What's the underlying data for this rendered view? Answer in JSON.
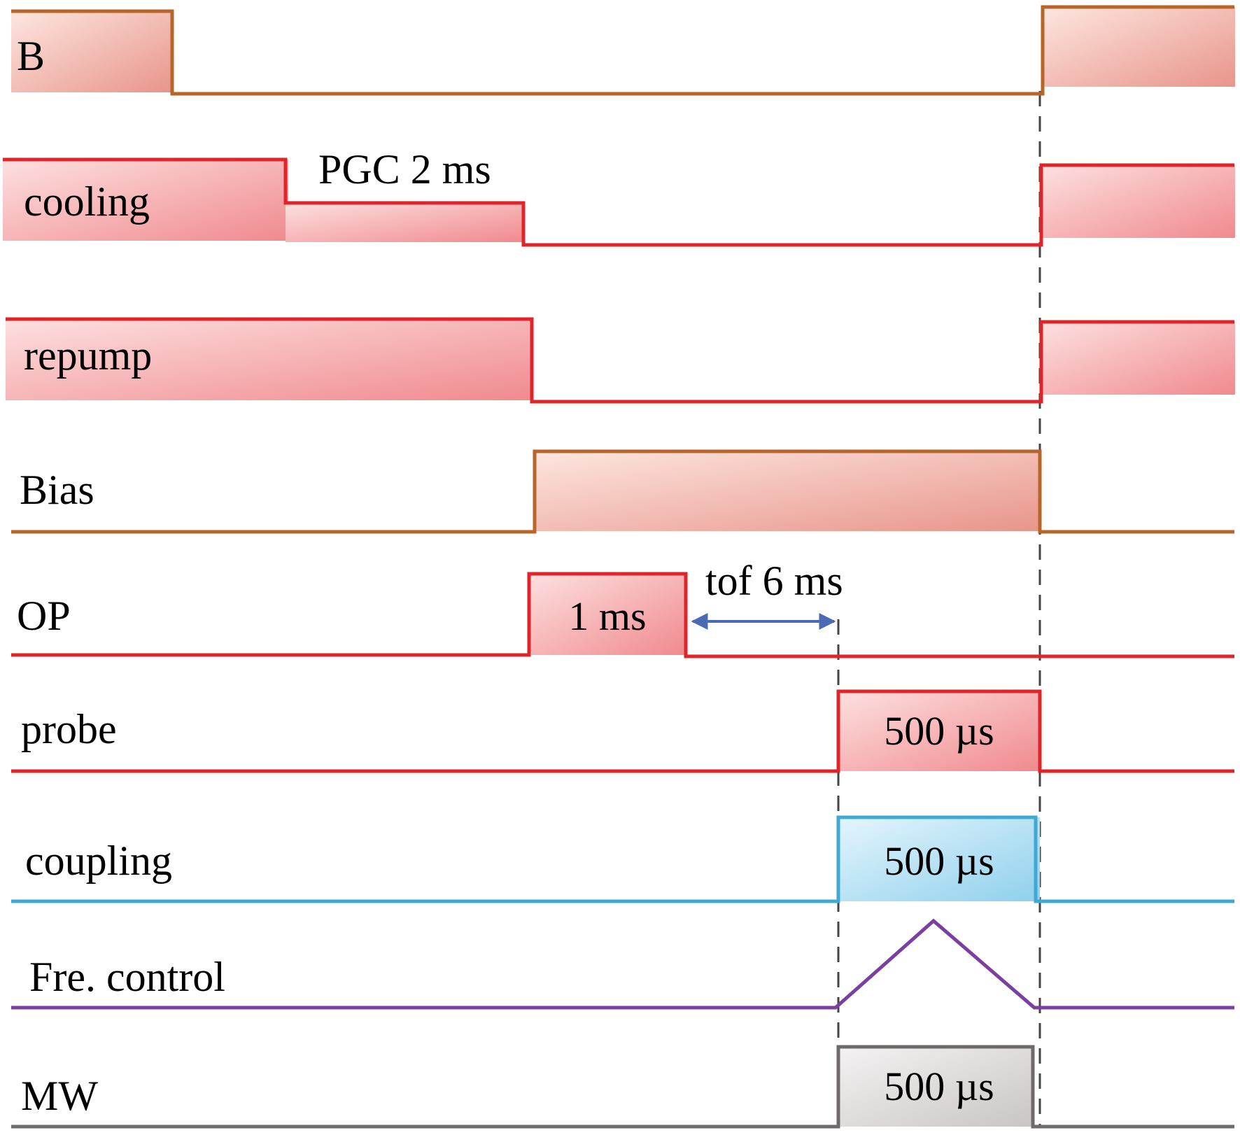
{
  "colors": {
    "orange_edge": "#b8652a",
    "red_edge": "#e0252a",
    "blue_edge": "#3fa9d6",
    "purple": "#7a3fa0",
    "gray_edge": "#6e6a6a",
    "red_fill_light": "#fde0e0",
    "red_fill_dark": "#f08a8e",
    "orange_fill_light": "#fde6e0",
    "orange_fill_dark": "#e8958a",
    "blue_fill_light": "#e4f5fd",
    "blue_fill_dark": "#8fd0ec",
    "gray_fill_light": "#f4f2f2",
    "gray_fill_dark": "#c9c5c5",
    "arrow": "#4a6ab3",
    "dash": "#444444"
  },
  "rows": {
    "b": {
      "label": "B"
    },
    "cooling": {
      "label": "cooling"
    },
    "repump": {
      "label": "repump"
    },
    "bias": {
      "label": "Bias"
    },
    "op": {
      "label": "OP",
      "pulse_label": "1 ms"
    },
    "probe": {
      "label": "probe",
      "pulse_label": "500 µs"
    },
    "coupling": {
      "label": "coupling",
      "pulse_label": "500 µs"
    },
    "freq": {
      "label": "Fre. control"
    },
    "mw": {
      "label": "MW",
      "pulse_label": "500 µs"
    }
  },
  "annotations": {
    "pgc": "PGC 2 ms",
    "tof": "tof 6 ms"
  }
}
